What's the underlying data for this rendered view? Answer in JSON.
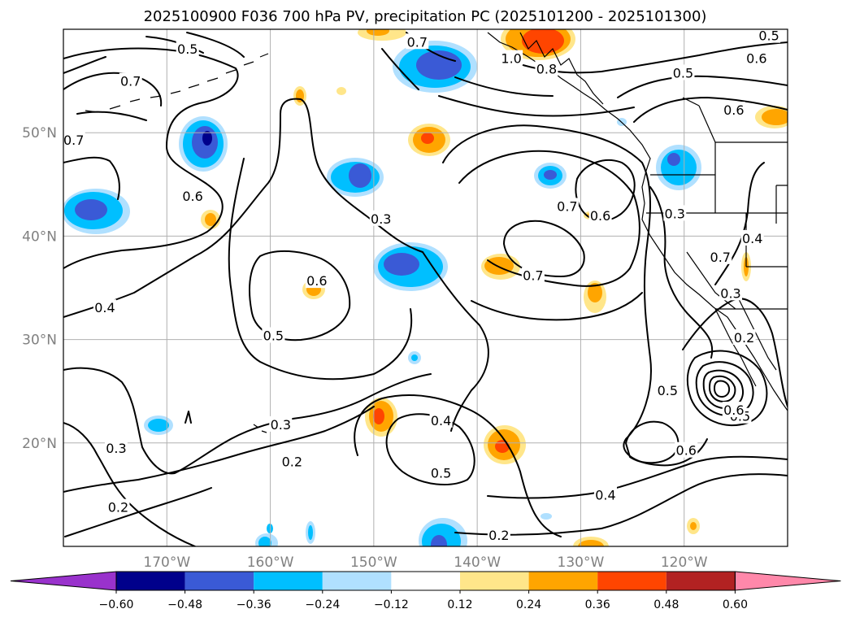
{
  "chart_data": {
    "type": "contour-map",
    "title": "2025100900 F036 700 hPa PV, precipitation PC (2025101200 - 2025101300)",
    "projection": "cylindrical",
    "lon_range": [
      -180,
      -110
    ],
    "lat_range": [
      10,
      60
    ],
    "grid": true,
    "x_ticks": [
      {
        "lon": -170,
        "label": "170°W"
      },
      {
        "lon": -160,
        "label": "160°W"
      },
      {
        "lon": -150,
        "label": "150°W"
      },
      {
        "lon": -140,
        "label": "140°W"
      },
      {
        "lon": -130,
        "label": "130°W"
      },
      {
        "lon": -120,
        "label": "120°W"
      }
    ],
    "y_ticks": [
      {
        "lat": 50,
        "label": "50°N"
      },
      {
        "lat": 40,
        "label": "40°N"
      },
      {
        "lat": 30,
        "label": "30°N"
      },
      {
        "lat": 20,
        "label": "20°N"
      }
    ],
    "colorbar": {
      "orientation": "horizontal",
      "extend": "both",
      "levels": [
        -0.6,
        -0.48,
        -0.36,
        -0.24,
        -0.12,
        0.12,
        0.24,
        0.36,
        0.48,
        0.6
      ],
      "tick_labels": [
        "−0.60",
        "−0.48",
        "−0.36",
        "−0.24",
        "−0.12",
        "0.12",
        "0.24",
        "0.36",
        "0.48",
        "0.60"
      ],
      "colors": [
        "#9932cc",
        "#00008b",
        "#3a5ad6",
        "#00bfff",
        "#b0e0ff",
        "#ffffff",
        "#ffe68a",
        "#ffa500",
        "#ff4500",
        "#b22222",
        "#ff88aa"
      ]
    },
    "contour_labels": [
      {
        "text": "0.5",
        "lon": -168,
        "lat": 58.1
      },
      {
        "text": "0.7",
        "lon": -173.5,
        "lat": 55
      },
      {
        "text": "0.7",
        "lon": -179,
        "lat": 49.3
      },
      {
        "text": "0.6",
        "lon": -167.5,
        "lat": 43.9
      },
      {
        "text": "0.3",
        "lon": -149.3,
        "lat": 41.7
      },
      {
        "text": "0.6",
        "lon": -155.5,
        "lat": 35.7
      },
      {
        "text": "0.5",
        "lon": -159.7,
        "lat": 30.4
      },
      {
        "text": "0.4",
        "lon": -176,
        "lat": 33.1
      },
      {
        "text": "0.3",
        "lon": -159,
        "lat": 21.8
      },
      {
        "text": "0.3",
        "lon": -174.9,
        "lat": 19.5
      },
      {
        "text": "0.2",
        "lon": -157.9,
        "lat": 18.2
      },
      {
        "text": "0.2",
        "lon": -174.7,
        "lat": 13.8
      },
      {
        "text": "0.4",
        "lon": -143.5,
        "lat": 22.2
      },
      {
        "text": "0.5",
        "lon": -143.5,
        "lat": 17.1
      },
      {
        "text": "0.2",
        "lon": -137.9,
        "lat": 11.1
      },
      {
        "text": "0.4",
        "lon": -127.6,
        "lat": 15
      },
      {
        "text": "0.6",
        "lon": -119.8,
        "lat": 19.3
      },
      {
        "text": "0.5",
        "lon": -121.6,
        "lat": 25.1
      },
      {
        "text": "0.7",
        "lon": -134.6,
        "lat": 36.2
      },
      {
        "text": "0.7",
        "lon": -131.3,
        "lat": 42.9
      },
      {
        "text": "0.6",
        "lon": -128.1,
        "lat": 42
      },
      {
        "text": "0.3",
        "lon": -120.9,
        "lat": 42.2
      },
      {
        "text": "0.4",
        "lon": -113.4,
        "lat": 39.8
      },
      {
        "text": "0.3",
        "lon": -115.5,
        "lat": 34.5
      },
      {
        "text": "0.2",
        "lon": -114.2,
        "lat": 30.2
      },
      {
        "text": "0.5",
        "lon": -114.6,
        "lat": 22.6
      },
      {
        "text": "0.6",
        "lon": -115.2,
        "lat": 23.2
      },
      {
        "text": "0.7",
        "lon": -116.5,
        "lat": 38
      },
      {
        "text": "0.5",
        "lon": -120.1,
        "lat": 55.8
      },
      {
        "text": "0.6",
        "lon": -115.2,
        "lat": 52.2
      },
      {
        "text": "0.6",
        "lon": -113,
        "lat": 57.2
      },
      {
        "text": "0.5",
        "lon": -111.8,
        "lat": 59.4
      },
      {
        "text": "0.8",
        "lon": -133.3,
        "lat": 56.2
      },
      {
        "text": "1.0",
        "lon": -136.7,
        "lat": 57.2
      },
      {
        "text": "0.7",
        "lon": -145.8,
        "lat": 58.8
      }
    ]
  }
}
